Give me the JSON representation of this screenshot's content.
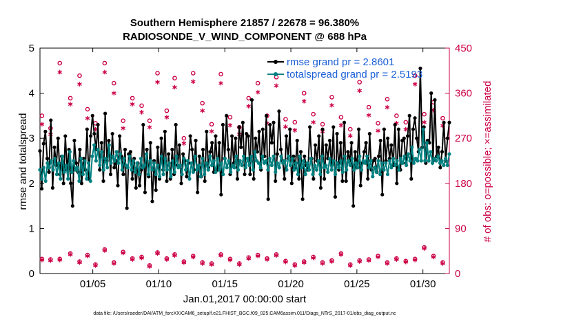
{
  "chart_data": {
    "type": "line",
    "title_line1": "Southern Hemisphere 21857 / 22678 = 96.380%",
    "title_line2": "RADIOSONDE_V_WIND_COMPONENT @ 688 hPa",
    "xlabel": "Jan.01,2017 00:00:00 start",
    "ylabel_left": "rmse and totalspread",
    "ylabel_right": "# of obs: o=possible; ×=assimilated",
    "footnote": "data file: /Users/raeder/DAI/ATM_forcXX/CAM6_setup/f.e21.FHIST_BGC.f09_025.CAM6assim.011/Diags_NTrS_2017-01/obs_diag_output.nc",
    "xlim": [
      1,
      32
    ],
    "ylim_left": [
      0,
      5
    ],
    "ylim_right": [
      0,
      450
    ],
    "x_ticks": [
      5,
      10,
      15,
      20,
      25,
      30
    ],
    "x_tick_labels": [
      "01/05",
      "01/10",
      "01/15",
      "01/20",
      "01/25",
      "01/30"
    ],
    "y_left_ticks": [
      "0",
      "1",
      "2",
      "3",
      "4",
      "5"
    ],
    "y_right_ticks": [
      "0",
      "90",
      "180",
      "270",
      "360",
      "450"
    ],
    "colors": {
      "rmse": "#000000",
      "spread": "#008080",
      "obs": "#cc0044",
      "legend_text": "#1a5fd6",
      "right_axis": "#cc0044"
    },
    "series": [
      {
        "name": "rmse",
        "legend": "rmse grand pr = 2.8601",
        "axis": "left",
        "values": [
          2.72,
          1.88,
          2.88,
          3.15,
          2.55,
          2.25,
          3.4,
          1.9,
          2.8,
          2.4,
          3.0,
          2.2,
          2.6,
          2.0,
          3.05,
          2.3,
          2.75,
          2.0,
          1.5,
          2.95,
          2.45,
          2.25,
          2.75,
          2.0,
          2.55,
          2.3,
          3.2,
          2.1,
          3.05,
          3.5,
          3.1,
          2.75,
          3.3,
          2.3,
          2.9,
          2.05,
          3.55,
          2.5,
          2.95,
          2.2,
          3.1,
          2.35,
          2.5,
          1.95,
          3.05,
          2.6,
          2.2,
          2.75,
          1.45,
          2.65,
          2.7,
          2.1,
          2.55,
          1.9,
          2.45,
          1.95,
          2.3,
          3.3,
          1.8,
          2.75,
          2.15,
          2.9,
          1.6,
          2.5,
          1.85,
          2.8,
          2.1,
          3.0,
          2.3,
          3.15,
          2.05,
          2.65,
          2.1,
          2.75,
          2.2,
          3.3,
          2.4,
          2.85,
          2.0,
          2.65,
          2.5,
          2.15,
          2.45,
          3.05,
          2.75,
          2.3,
          2.95,
          1.8,
          2.6,
          2.15,
          2.75,
          2.05,
          3.15,
          2.35,
          2.7,
          2.9,
          2.25,
          3.05,
          2.3,
          2.9,
          1.75,
          3.3,
          2.55,
          3.5,
          2.75,
          2.2,
          3.05,
          2.45,
          3.0,
          2.1,
          3.25,
          2.8,
          3.35,
          2.2,
          3.1,
          3.05,
          2.2,
          3.85,
          2.1,
          3.0,
          2.7,
          3.15,
          2.3,
          3.2,
          2.6,
          3.5,
          1.65,
          3.3,
          2.9,
          3.35,
          2.05,
          2.65,
          3.6,
          2.75,
          2.5,
          2.1,
          3.05,
          2.55,
          3.2,
          2.0,
          2.6,
          2.35,
          2.95,
          2.1,
          2.7,
          1.65,
          2.6,
          2.4,
          2.3,
          3.25,
          2.55,
          2.1,
          2.85,
          2.5,
          3.05,
          1.9,
          3.2,
          2.1,
          2.85,
          2.55,
          2.95,
          2.4,
          3.25,
          1.7,
          3.1,
          2.3,
          2.9,
          2.05,
          3.35,
          2.05,
          2.7,
          2.5,
          2.9,
          1.5,
          2.7,
          2.35,
          3.2,
          1.95,
          2.45,
          2.7,
          2.9,
          2.1,
          3.1,
          2.3,
          2.5,
          2.55,
          2.25,
          2.6,
          2.95,
          1.75,
          3.2,
          2.5,
          3.0,
          2.55,
          2.85,
          2.4,
          3.3,
          2.0,
          3.2,
          2.3,
          2.95,
          3.0,
          2.45,
          3.05,
          3.5,
          2.1,
          3.2,
          3.45,
          3.0,
          2.7,
          4.55,
          2.8,
          3.25,
          2.45,
          2.95,
          2.9,
          4.0,
          2.5,
          3.85,
          2.6,
          2.8,
          2.35,
          2.7,
          3.35,
          2.5,
          3.0,
          3.35
        ]
      },
      {
        "name": "totalspread",
        "legend": "totalspread grand pr = 2.5193",
        "axis": "left",
        "values": [
          2.3,
          2.1,
          2.35,
          2.05,
          2.45,
          2.35,
          2.5,
          2.3,
          2.55,
          2.2,
          2.45,
          2.1,
          2.6,
          2.25,
          2.4,
          2.1,
          2.7,
          2.25,
          2.5,
          2.3,
          2.35,
          2.05,
          2.55,
          2.2,
          2.5,
          2.1,
          2.45,
          2.05,
          2.6,
          2.85,
          2.5,
          2.75,
          2.4,
          2.7,
          2.3,
          2.55,
          2.35,
          2.85,
          2.45,
          2.6,
          2.5,
          2.7,
          2.45,
          2.65,
          2.3,
          2.55,
          2.4,
          2.35,
          2.6,
          2.3,
          2.5,
          2.25,
          2.45,
          2.2,
          2.55,
          2.35,
          2.4,
          2.65,
          2.2,
          2.5,
          2.3,
          2.45,
          2.2,
          2.4,
          2.15,
          2.6,
          2.2,
          2.55,
          2.3,
          2.45,
          2.15,
          2.5,
          2.25,
          2.6,
          2.35,
          2.4,
          2.2,
          2.55,
          2.3,
          2.5,
          2.1,
          2.45,
          2.25,
          2.6,
          2.3,
          2.4,
          2.15,
          2.55,
          2.2,
          2.45,
          2.3,
          2.6,
          2.4,
          2.5,
          2.25,
          2.55,
          2.3,
          2.45,
          2.2,
          2.55,
          2.35,
          2.5,
          2.25,
          2.4,
          2.35,
          2.6,
          2.3,
          2.5,
          2.4,
          2.6,
          2.35,
          2.55,
          2.4,
          2.6,
          2.3,
          2.7,
          2.5,
          2.45,
          2.35,
          2.6,
          2.45,
          2.5,
          2.3,
          2.55,
          2.4,
          2.6,
          2.25,
          2.45,
          2.35,
          2.6,
          2.45,
          2.5,
          2.3,
          2.6,
          2.4,
          2.55,
          2.3,
          2.45,
          2.2,
          2.6,
          2.35,
          2.5,
          2.2,
          2.45,
          2.3,
          2.55,
          2.2,
          2.4,
          2.3,
          2.5,
          2.2,
          2.6,
          2.35,
          2.4,
          2.25,
          2.55,
          2.3,
          2.5,
          2.2,
          2.45,
          2.35,
          2.5,
          2.25,
          2.6,
          2.3,
          2.5,
          2.4,
          2.55,
          2.3,
          2.45,
          2.35,
          2.6,
          2.3,
          2.5,
          2.45,
          2.6,
          2.35,
          2.5,
          2.15,
          2.35,
          2.25,
          2.5,
          2.2,
          2.45,
          2.3,
          2.45,
          2.2,
          2.5,
          2.35,
          2.55,
          2.4,
          2.5,
          2.3,
          2.55,
          2.45,
          2.6,
          2.4,
          2.65,
          2.5,
          2.8,
          2.45,
          2.55,
          2.5,
          2.75,
          2.5,
          3.2,
          2.5,
          2.9,
          2.5,
          2.7,
          2.45,
          2.55,
          2.5,
          2.6,
          2.45,
          2.5,
          2.4,
          2.55,
          2.4,
          2.65
        ]
      },
      {
        "name": "obs_possible",
        "axis": "right",
        "marker": "o",
        "x": [
          1.15,
          1.8,
          2.5,
          3.3,
          4.0,
          4.6,
          5.2,
          5.9,
          6.6,
          7.3,
          8.0,
          8.7,
          9.3,
          9.9,
          10.6,
          11.2,
          11.9,
          12.6,
          13.3,
          14.0,
          14.7,
          15.4,
          16.1,
          16.8,
          17.5,
          18.2,
          18.9,
          19.6,
          20.3,
          21.0,
          21.7,
          22.4,
          23.1,
          23.8,
          24.5,
          25.2,
          25.9,
          26.6,
          27.3,
          28.0,
          28.7,
          29.4,
          30.1,
          30.8,
          31.5
        ],
        "values": [
          315,
          290,
          420,
          350,
          395,
          328,
          300,
          420,
          380,
          305,
          350,
          335,
          305,
          400,
          325,
          390,
          270,
          400,
          340,
          298,
          398,
          312,
          292,
          350,
          380,
          315,
          392,
          308,
          302,
          360,
          318,
          298,
          352,
          312,
          288,
          382,
          332,
          300,
          348,
          315,
          302,
          395,
          318,
          342,
          310
        ]
      },
      {
        "name": "obs_assimilated",
        "axis": "right",
        "marker": "x",
        "x": [
          1.15,
          1.8,
          2.5,
          3.3,
          4.0,
          4.6,
          5.2,
          5.9,
          6.6,
          7.3,
          8.0,
          8.7,
          9.3,
          9.9,
          10.6,
          11.2,
          11.9,
          12.6,
          13.3,
          14.0,
          14.7,
          15.4,
          16.1,
          16.8,
          17.5,
          18.2,
          18.9,
          19.6,
          20.3,
          21.0,
          21.7,
          22.4,
          23.1,
          23.8,
          24.5,
          25.2,
          25.9,
          26.6,
          27.3,
          28.0,
          28.7,
          29.4,
          30.1,
          30.8,
          31.5
        ],
        "values": [
          298,
          278,
          402,
          338,
          378,
          310,
          288,
          402,
          360,
          290,
          338,
          322,
          292,
          382,
          312,
          372,
          260,
          383,
          325,
          284,
          380,
          296,
          278,
          334,
          362,
          300,
          375,
          293,
          286,
          344,
          302,
          283,
          336,
          296,
          275,
          365,
          316,
          285,
          332,
          300,
          288,
          378,
          302,
          326,
          295
        ]
      },
      {
        "name": "obs_possible_low",
        "axis": "right",
        "marker": "o",
        "x": [
          1.15,
          1.8,
          2.5,
          3.3,
          4.0,
          4.6,
          5.2,
          5.9,
          6.6,
          7.3,
          8.0,
          8.7,
          9.3,
          9.9,
          10.6,
          11.2,
          11.9,
          12.6,
          13.3,
          14.0,
          14.7,
          15.4,
          16.1,
          16.8,
          17.5,
          18.2,
          18.9,
          19.6,
          20.3,
          21.0,
          21.7,
          22.4,
          23.1,
          23.8,
          24.5,
          25.2,
          25.9,
          26.6,
          27.3,
          28.0,
          28.7,
          29.4,
          30.1,
          30.8,
          31.5
        ],
        "values": [
          29,
          28,
          29,
          40,
          24,
          37,
          18,
          48,
          22,
          43,
          30,
          33,
          16,
          42,
          30,
          38,
          24,
          35,
          22,
          20,
          38,
          29,
          20,
          32,
          37,
          30,
          38,
          25,
          18,
          24,
          33,
          22,
          26,
          40,
          18,
          26,
          28,
          35,
          22,
          30,
          25,
          29,
          52,
          35,
          22
        ]
      },
      {
        "name": "obs_assimilated_low",
        "axis": "right",
        "marker": "x",
        "x": [
          1.15,
          1.8,
          2.5,
          3.3,
          4.0,
          4.6,
          5.2,
          5.9,
          6.6,
          7.3,
          8.0,
          8.7,
          9.3,
          9.9,
          10.6,
          11.2,
          11.9,
          12.6,
          13.3,
          14.0,
          14.7,
          15.4,
          16.1,
          16.8,
          17.5,
          18.2,
          18.9,
          19.6,
          20.3,
          21.0,
          21.7,
          22.4,
          23.1,
          23.8,
          24.5,
          25.2,
          25.9,
          26.6,
          27.3,
          28.0,
          28.7,
          29.4,
          30.1,
          30.8,
          31.5
        ],
        "values": [
          27,
          26,
          27,
          38,
          22,
          35,
          16,
          46,
          20,
          41,
          28,
          31,
          14,
          40,
          28,
          36,
          22,
          33,
          20,
          18,
          36,
          27,
          18,
          30,
          35,
          28,
          36,
          23,
          16,
          22,
          31,
          20,
          24,
          38,
          16,
          24,
          26,
          33,
          20,
          28,
          23,
          27,
          50,
          33,
          20
        ]
      }
    ]
  }
}
